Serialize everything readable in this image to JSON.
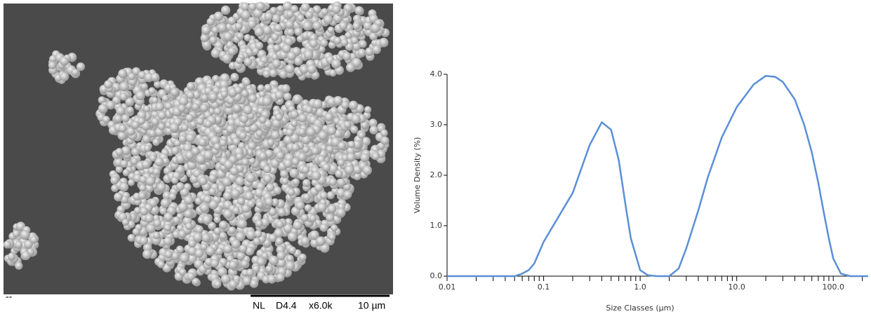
{
  "image_panel": {
    "corner_text": "--",
    "scale_bar_labels": [
      "NL",
      "D4.4",
      "x6.0k",
      "10 µm"
    ]
  },
  "chart_data": {
    "type": "line",
    "xlabel": "Size Classes (µm)",
    "ylabel": "Volume Density (%)",
    "color": "#5b8fd6",
    "xscale": "log",
    "x": [
      0.01,
      0.05,
      0.06,
      0.07,
      0.08,
      0.1,
      0.2,
      0.3,
      0.4,
      0.5,
      0.6,
      0.7,
      0.8,
      1.0,
      1.2,
      1.5,
      2.0,
      2.5,
      3,
      4,
      5,
      7,
      10,
      15,
      20,
      25,
      30,
      40,
      50,
      60,
      70,
      80,
      90,
      100,
      120,
      150,
      230
    ],
    "values": [
      0,
      0,
      0.05,
      0.12,
      0.25,
      0.68,
      1.65,
      2.6,
      3.05,
      2.9,
      2.3,
      1.45,
      0.75,
      0.12,
      0.02,
      0,
      0,
      0.15,
      0.55,
      1.3,
      1.95,
      2.75,
      3.35,
      3.8,
      3.97,
      3.95,
      3.85,
      3.5,
      3.0,
      2.45,
      1.85,
      1.25,
      0.75,
      0.35,
      0.05,
      0,
      0
    ],
    "xlim": [
      0.01,
      230
    ],
    "ylim": [
      0,
      4
    ],
    "xticks": [
      0.01,
      0.1,
      {
        "value": 1,
        "label": "1.0"
      },
      {
        "value": 10,
        "label": "10.0"
      },
      {
        "value": 100,
        "label": "100.0"
      }
    ],
    "xminorticks": [
      0.02,
      0.03,
      0.04,
      0.05,
      0.06,
      0.07,
      0.08,
      0.09,
      0.2,
      0.3,
      0.4,
      0.5,
      0.6,
      0.7,
      0.8,
      0.9,
      2,
      3,
      4,
      5,
      6,
      7,
      8,
      9,
      20,
      30,
      40,
      50,
      60,
      70,
      80,
      90,
      200
    ],
    "yticks": [
      {
        "value": 0,
        "label": "0.0"
      },
      {
        "value": 1,
        "label": "1.0"
      },
      {
        "value": 2,
        "label": "2.0"
      },
      {
        "value": 3,
        "label": "3.0"
      },
      {
        "value": 4,
        "label": "4.0"
      }
    ]
  }
}
